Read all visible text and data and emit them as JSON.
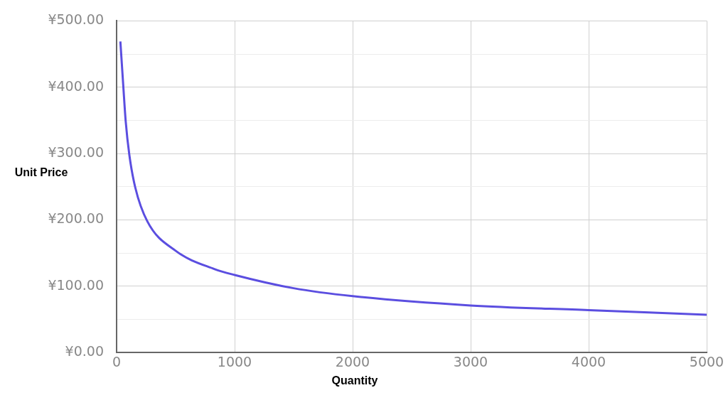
{
  "chart_data": {
    "type": "line",
    "xlabel": "Quantity",
    "ylabel": "Unit Price",
    "x": [
      32,
      57,
      77,
      108,
      158,
      260,
      504,
      828,
      1000,
      1500,
      2000,
      3000,
      4000,
      5000
    ],
    "series": [
      {
        "color": "#5b4ee0",
        "values": [
          469,
          401,
          349,
          298,
          249,
          198,
          153,
          126,
          117,
          97,
          85,
          71,
          64,
          57
        ]
      }
    ],
    "xlim": [
      0,
      5000
    ],
    "xticks": [
      0,
      1000,
      2000,
      3000,
      4000,
      5000
    ],
    "ylim": [
      0,
      500
    ],
    "yticks": [
      {
        "value": 0,
        "label": "¥0.00"
      },
      {
        "value": 50,
        "label": null
      },
      {
        "value": 100,
        "label": "¥100.00"
      },
      {
        "value": 150,
        "label": null
      },
      {
        "value": 200,
        "label": "¥200.00"
      },
      {
        "value": 250,
        "label": null
      },
      {
        "value": 300,
        "label": "¥300.00"
      },
      {
        "value": 350,
        "label": null
      },
      {
        "value": 400,
        "label": "¥400.00"
      },
      {
        "value": 450,
        "label": null
      },
      {
        "value": 500,
        "label": "¥500.00"
      }
    ],
    "grid": true,
    "marker": "none",
    "line_style": "solid",
    "legend": false
  }
}
